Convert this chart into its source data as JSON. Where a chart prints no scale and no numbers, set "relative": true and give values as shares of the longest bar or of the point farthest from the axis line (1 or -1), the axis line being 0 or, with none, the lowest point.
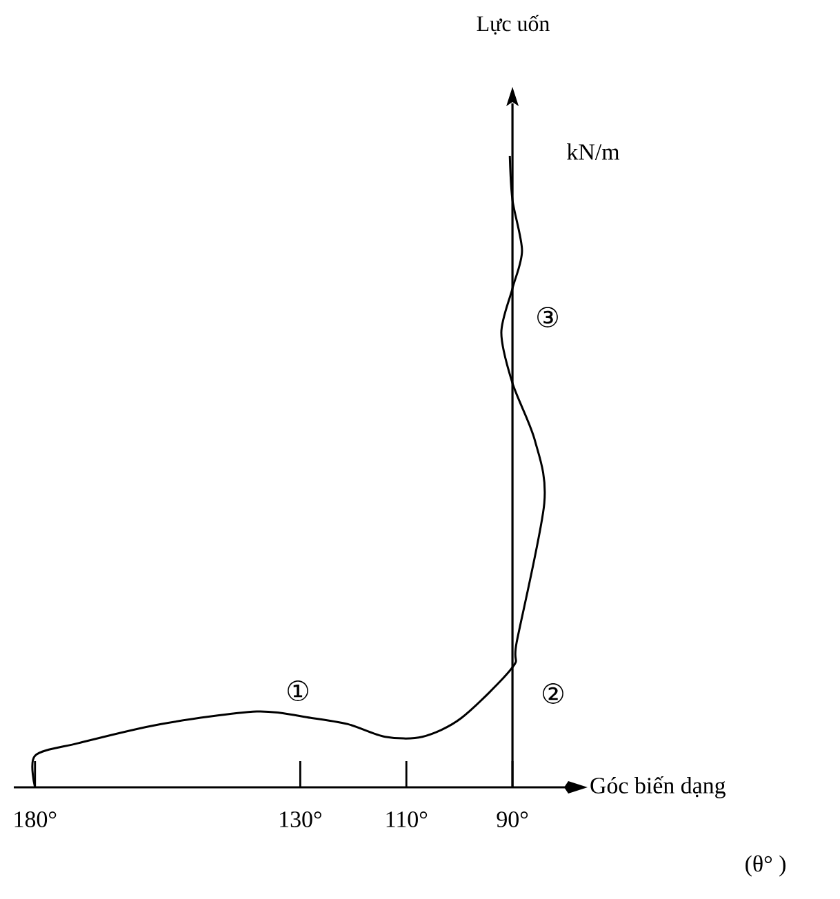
{
  "chart_data": {
    "type": "line",
    "relative": true,
    "xlabel": "Góc biến dạng",
    "xlim": [
      184,
      80
    ],
    "xticks": [
      {
        "value": 180,
        "label": "180°"
      },
      {
        "value": 130,
        "label": "130°"
      },
      {
        "value": 110,
        "label": "110°"
      },
      {
        "value": 90,
        "label": "90°"
      }
    ],
    "series": [
      {
        "color": "#000000",
        "x": [
          180,
          180,
          171.8,
          156.4,
          138.2,
          128,
          121,
          114,
          107,
          99.6,
          90,
          89.2,
          84,
          85.8,
          90,
          92.1,
          90,
          88.2,
          90,
          90.5
        ],
        "values": [
          0,
          0.05,
          0.07,
          0.1,
          0.12,
          0.11,
          0.1,
          0.08,
          0.08,
          0.11,
          0.19,
          0.23,
          0.45,
          0.55,
          0.64,
          0.72,
          0.79,
          0.85,
          0.93,
          1
        ]
      }
    ],
    "ref_lines": [
      {
        "axis": "x",
        "value": 90,
        "color": "#000000"
      }
    ],
    "annotations": [
      "①",
      "②",
      "③",
      "kN/m",
      "(θ° )",
      "Lực uốn"
    ]
  }
}
